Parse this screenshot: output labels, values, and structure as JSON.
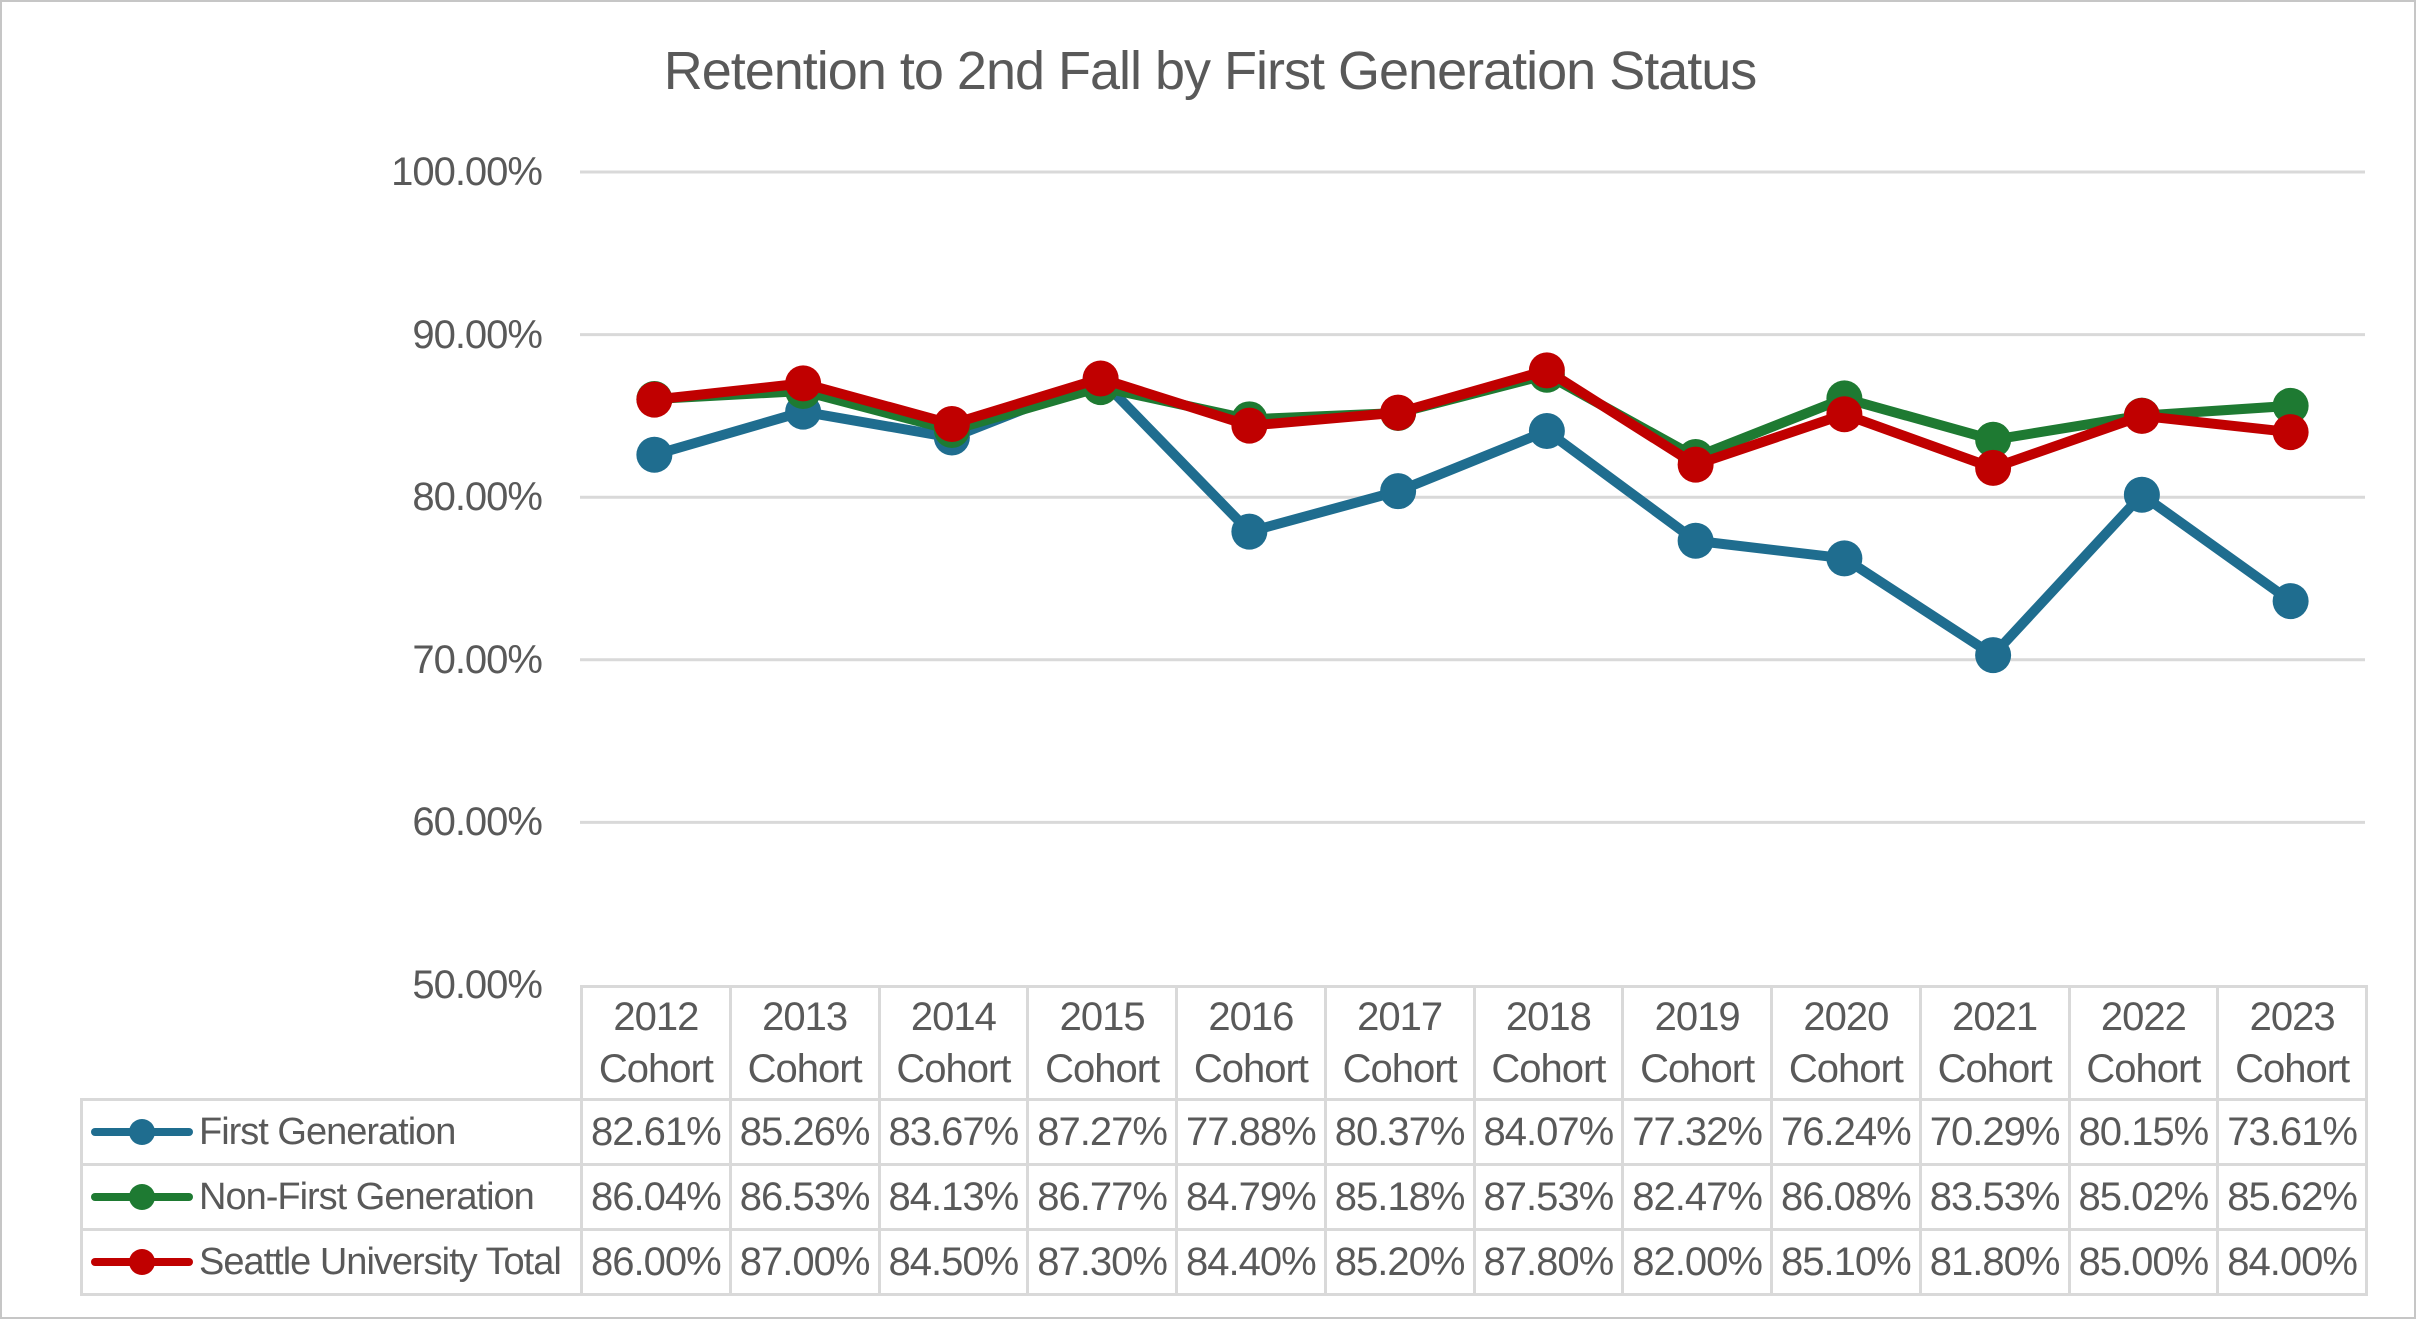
{
  "chart_data": {
    "type": "line",
    "title": "Retention to 2nd Fall by First Generation Status",
    "categories": [
      "2012",
      "2013",
      "2014",
      "2015",
      "2016",
      "2017",
      "2018",
      "2019",
      "2020",
      "2021",
      "2022",
      "2023"
    ],
    "category_suffix": "Cohort",
    "series": [
      {
        "name": "First Generation",
        "color": "#1F6D8F",
        "values": [
          82.61,
          85.26,
          83.67,
          87.27,
          77.88,
          80.37,
          84.07,
          77.32,
          76.24,
          70.29,
          80.15,
          73.61
        ]
      },
      {
        "name": "Non-First Generation",
        "color": "#1E7A32",
        "values": [
          86.04,
          86.53,
          84.13,
          86.77,
          84.79,
          85.18,
          87.53,
          82.47,
          86.08,
          83.53,
          85.02,
          85.62
        ]
      },
      {
        "name": "Seattle University Total",
        "color": "#C00000",
        "values": [
          86.0,
          87.0,
          84.5,
          87.3,
          84.4,
          85.2,
          87.8,
          82.0,
          85.1,
          81.8,
          85.0,
          84.0
        ]
      }
    ],
    "y_axis": {
      "tick_labels": [
        "100.00%",
        "90.00%",
        "80.00%",
        "70.00%",
        "60.00%",
        "50.00%"
      ],
      "tick_values": [
        100,
        90,
        80,
        70,
        60,
        50
      ],
      "min": 50,
      "max": 100
    },
    "value_format": "percent, 2 decimal places",
    "grid": "horizontal gridlines on",
    "legend_position": "data-table left column",
    "colors": {
      "text": "#595959",
      "gridline": "#D9D9D9",
      "table_border": "#D9D9D9",
      "frame_border": "#C6C6C6",
      "background": "#FFFFFF"
    }
  }
}
